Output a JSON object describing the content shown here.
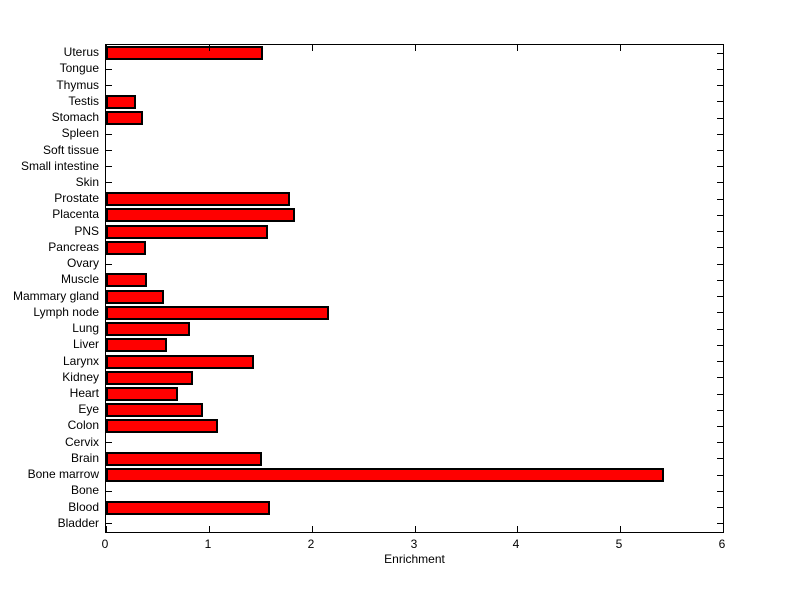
{
  "figure": {
    "background_color": "#FFFFFF",
    "axis_color": "#000000",
    "text_color": "#000000"
  },
  "chart_data": {
    "type": "bar",
    "orientation": "horizontal",
    "title": "",
    "xlabel": "Enrichment",
    "ylabel": "",
    "xlim": [
      0,
      6
    ],
    "x_ticks": [
      "0",
      "1",
      "2",
      "3",
      "4",
      "5",
      "6"
    ],
    "grid": false,
    "legend": false,
    "bar_color": "#FF0000",
    "bar_edge_color": "#000000",
    "categories": [
      "Uterus",
      "Tongue",
      "Thymus",
      "Testis",
      "Stomach",
      "Spleen",
      "Soft tissue",
      "Small intestine",
      "Skin",
      "Prostate",
      "Placenta",
      "PNS",
      "Pancreas",
      "Ovary",
      "Muscle",
      "Mammary gland",
      "Lymph node",
      "Lung",
      "Liver",
      "Larynx",
      "Kidney",
      "Heart",
      "Eye",
      "Colon",
      "Cervix",
      "Brain",
      "Bone marrow",
      "Bone",
      "Blood",
      "Bladder"
    ],
    "values": [
      1.53,
      0,
      0,
      0.29,
      0.36,
      0,
      0,
      0,
      0,
      1.79,
      1.84,
      1.58,
      0.39,
      0,
      0.4,
      0.56,
      2.17,
      0.82,
      0.59,
      1.44,
      0.85,
      0.7,
      0.94,
      1.09,
      0,
      1.52,
      5.43,
      0,
      1.59,
      0
    ]
  }
}
